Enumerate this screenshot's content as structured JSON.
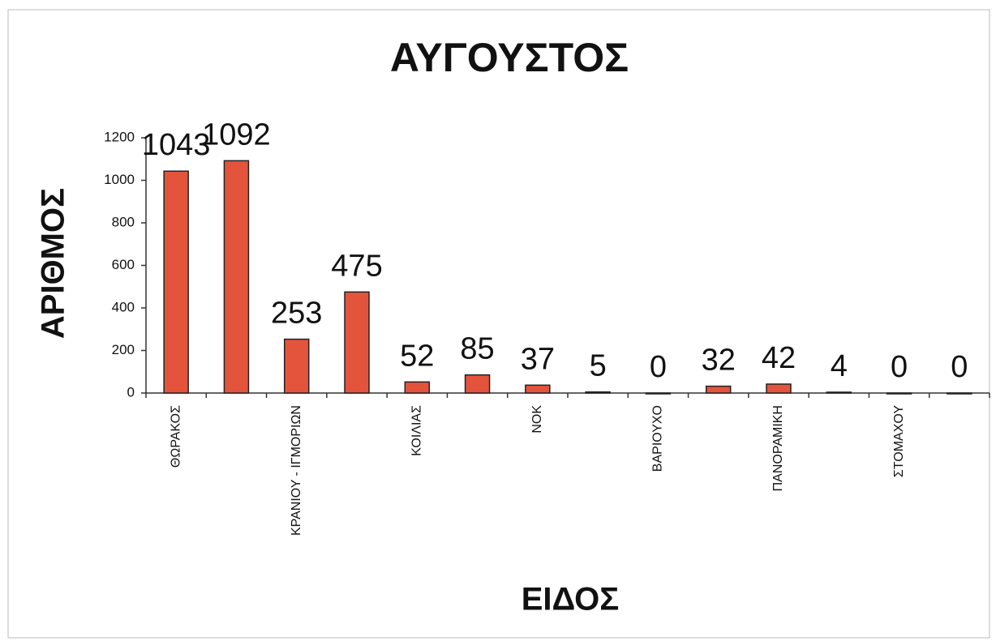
{
  "chart_data": {
    "type": "bar",
    "title": "ΑΥΓΟΥΣΤΟΣ",
    "x_label": "ΕΙΔΟΣ",
    "y_label": "ΑΡΙΘΜΟΣ",
    "categories": [
      "ΘΩΡΑΚΟΣ",
      null,
      "ΚΡΑΝΙΟΥ - ΙΓΜΟΡΙΩΝ",
      null,
      "ΚΟΙΛΙΑΣ",
      null,
      "ΝΟΚ",
      null,
      "ΒΑΡΙΟΥΧΟ",
      null,
      "ΠΑΝΟΡΑΜΙΚΗ",
      null,
      "ΣΤΟΜΑΧΟΥ",
      null
    ],
    "values": [
      1043,
      1092,
      253,
      475,
      52,
      85,
      37,
      5,
      0,
      32,
      42,
      4,
      0,
      0
    ],
    "color": "#e4543d",
    "ylim": [
      0,
      1200
    ],
    "yticks": [
      0,
      200,
      400,
      600,
      800,
      1000,
      1200
    ],
    "grid": false
  }
}
